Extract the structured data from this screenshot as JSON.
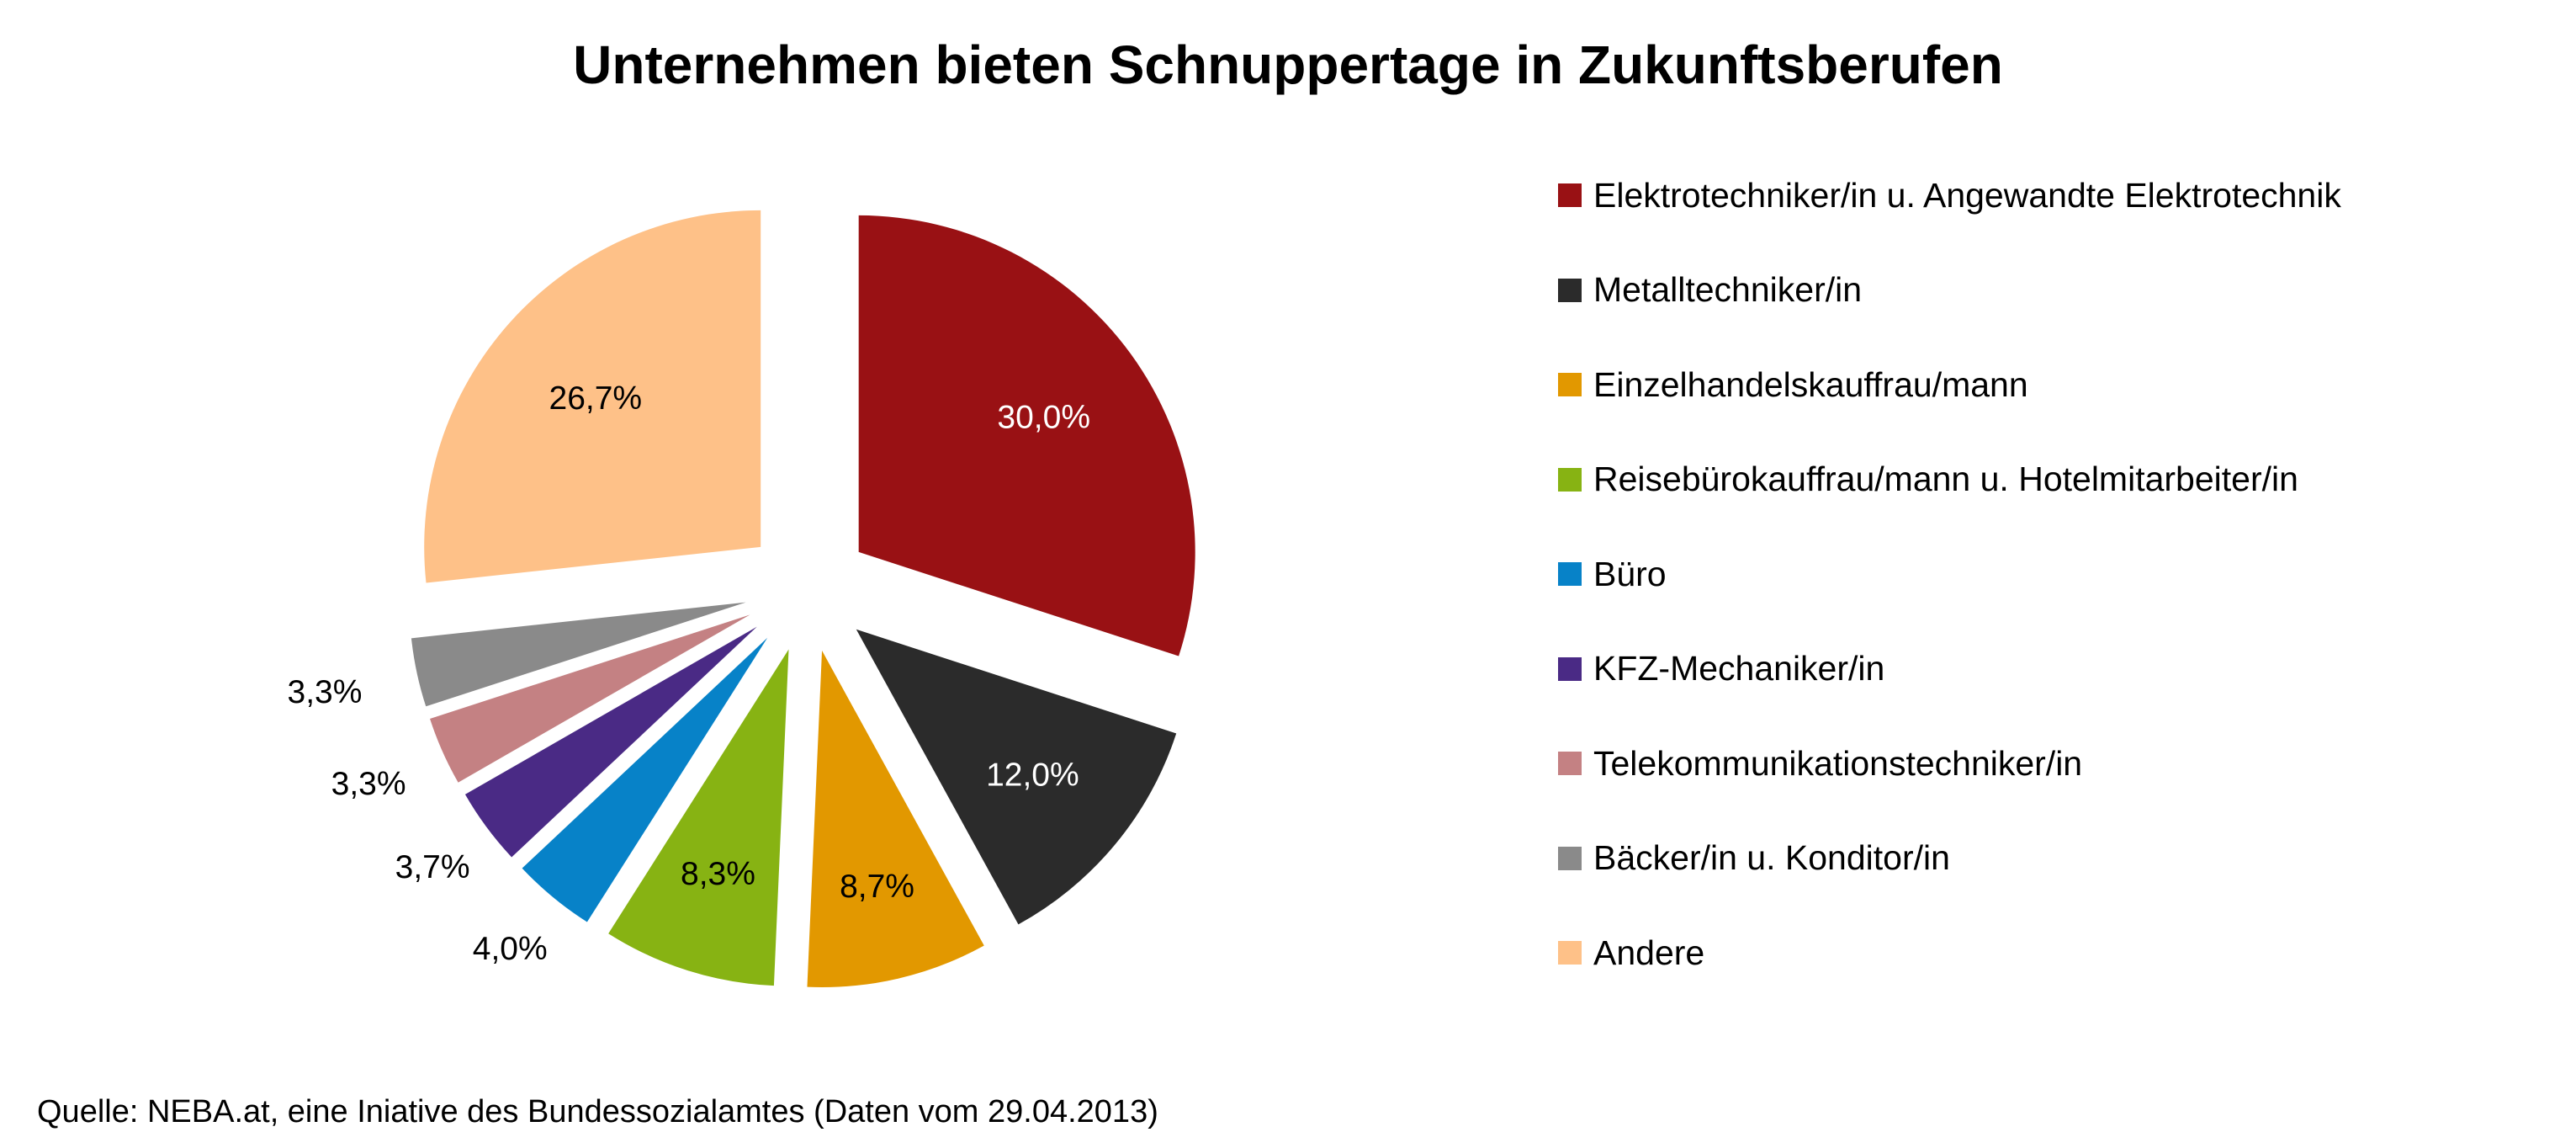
{
  "chart_data": {
    "type": "pie",
    "title": "Unternehmen bieten Schnuppertage in Zukunftsberufen",
    "slices": [
      {
        "label": "Elektrotechniker/in u. Angewandte Elektrotechnik",
        "value": 30.0,
        "value_label": "30,0%",
        "color": "#991114",
        "label_color": "#ffffff"
      },
      {
        "label": "Metalltechniker/in",
        "value": 12.0,
        "value_label": "12,0%",
        "color": "#2b2b2b",
        "label_color": "#ffffff"
      },
      {
        "label": "Einzelhandelskauffrau/mann",
        "value": 8.7,
        "value_label": "8,7%",
        "color": "#e29800",
        "label_color": "#000000"
      },
      {
        "label": "Reisebürokauffrau/mann u. Hotelmitarbeiter/in",
        "value": 8.3,
        "value_label": "8,3%",
        "color": "#87b313",
        "label_color": "#000000"
      },
      {
        "label": "Büro",
        "value": 4.0,
        "value_label": "4,0%",
        "color": "#0782c8",
        "label_color": "#000000"
      },
      {
        "label": "KFZ-Mechaniker/in",
        "value": 3.7,
        "value_label": "3,7%",
        "color": "#4a2a85",
        "label_color": "#000000"
      },
      {
        "label": "Telekommunikationstechniker/in",
        "value": 3.3,
        "value_label": "3,3%",
        "color": "#c48183",
        "label_color": "#000000"
      },
      {
        "label": "Bäcker/in u. Konditor/in",
        "value": 3.3,
        "value_label": "3,3%",
        "color": "#8a8a8a",
        "label_color": "#000000"
      },
      {
        "label": "Andere",
        "value": 26.7,
        "value_label": "26,7%",
        "color": "#fec188",
        "label_color": "#000000"
      }
    ],
    "legend_position": "right"
  },
  "source": "Quelle: NEBA.at, eine Iniative des Bundessozialamtes (Daten vom 29.04.2013)"
}
